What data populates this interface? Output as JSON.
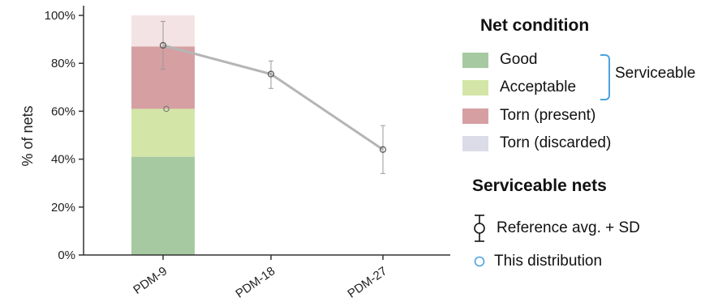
{
  "chart_data": {
    "type": "bar",
    "categories": [
      "PDM-9",
      "PDM-18",
      "PDM-27"
    ],
    "ylabel": "% of nets",
    "xlabel": "",
    "ylim": [
      0,
      100
    ],
    "yticks": [
      "0%",
      "20%",
      "40%",
      "60%",
      "80%",
      "100%"
    ],
    "stacked_bar": {
      "category": "PDM-9",
      "segments": [
        {
          "name": "Good",
          "value": 41,
          "color": "#a6c9a2"
        },
        {
          "name": "Acceptable",
          "value": 20,
          "color": "#d3e6a7"
        },
        {
          "name": "Torn (present)",
          "value": 26,
          "color": "#d6a0a3"
        },
        {
          "name": "Torn (discarded)",
          "value": 13,
          "color": "#f4e3e4"
        }
      ]
    },
    "reference": {
      "name": "Reference avg. + SD",
      "points": [
        {
          "x": "PDM-9",
          "mean": 87.5,
          "sd_low": 77.5,
          "sd_high": 97.5
        },
        {
          "x": "PDM-18",
          "mean": 75.5,
          "sd_low": 69.5,
          "sd_high": 81
        },
        {
          "x": "PDM-27",
          "mean": 44,
          "sd_low": 34,
          "sd_high": 54
        }
      ],
      "line_color": "#b5b5b5"
    },
    "this_distribution": {
      "name": "This distribution",
      "points": [
        {
          "x": "PDM-9",
          "value": 61
        }
      ],
      "color": "#4aa3df"
    }
  },
  "legend": {
    "net_condition_title": "Net condition",
    "items": [
      {
        "label": "Good",
        "color": "#a6c9a2"
      },
      {
        "label": "Acceptable",
        "color": "#d3e6a7"
      },
      {
        "label": "Torn (present)",
        "color": "#d6a0a3"
      },
      {
        "label": "Torn (discarded)",
        "color": "#dcdce8"
      }
    ],
    "serviceable_label": "Serviceable",
    "serviceable_title": "Serviceable nets",
    "reference_label": "Reference avg. + SD",
    "distribution_label": "This distribution"
  }
}
